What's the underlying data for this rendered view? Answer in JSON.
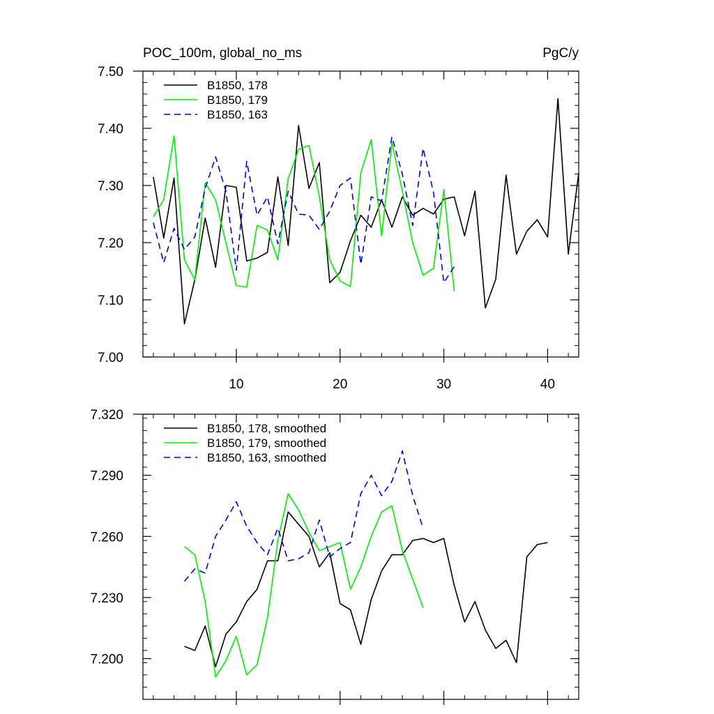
{
  "chart_data": [
    {
      "type": "line",
      "title": "POC_100m, global_no_ms",
      "units": "PgC/y",
      "xlabel": "",
      "ylabel": "",
      "xlim": [
        1,
        43
      ],
      "ylim": [
        7.0,
        7.5
      ],
      "xticks": [
        10,
        20,
        30,
        40
      ],
      "yticks": [
        7.0,
        7.1,
        7.2,
        7.3,
        7.4,
        7.5
      ],
      "ytick_labels": [
        "7.00",
        "7.10",
        "7.20",
        "7.30",
        "7.40",
        "7.50"
      ],
      "xtick_labels": [
        "10",
        "20",
        "30",
        "40"
      ],
      "legend_position": "top-left",
      "grid": false,
      "series": [
        {
          "name": "B1850, 178",
          "color": "#000000",
          "dash": "solid",
          "x": [
            2,
            3,
            4,
            5,
            6,
            7,
            8,
            9,
            10,
            11,
            12,
            13,
            14,
            15,
            16,
            17,
            18,
            19,
            20,
            21,
            22,
            23,
            24,
            25,
            26,
            27,
            28,
            29,
            30,
            31,
            32,
            33,
            34,
            35,
            36,
            37,
            38,
            39,
            40,
            41,
            42,
            43
          ],
          "y": [
            7.315,
            7.208,
            7.313,
            7.058,
            7.135,
            7.243,
            7.157,
            7.3,
            7.297,
            7.168,
            7.173,
            7.183,
            7.315,
            7.195,
            7.405,
            7.295,
            7.34,
            7.13,
            7.148,
            7.203,
            7.248,
            7.227,
            7.275,
            7.227,
            7.28,
            7.248,
            7.26,
            7.25,
            7.276,
            7.28,
            7.212,
            7.29,
            7.086,
            7.136,
            7.318,
            7.18,
            7.22,
            7.24,
            7.21,
            7.452,
            7.18,
            7.322
          ]
        },
        {
          "name": "B1850, 179",
          "color": "#00ee00",
          "dash": "solid",
          "x": [
            2,
            3,
            4,
            5,
            6,
            7,
            8,
            9,
            10,
            11,
            12,
            13,
            14,
            15,
            16,
            17,
            18,
            19,
            20,
            21,
            22,
            23,
            24,
            25,
            26,
            27,
            28,
            29,
            30,
            31
          ],
          "y": [
            7.245,
            7.275,
            7.387,
            7.17,
            7.135,
            7.305,
            7.275,
            7.2,
            7.125,
            7.122,
            7.23,
            7.222,
            7.17,
            7.312,
            7.363,
            7.37,
            7.28,
            7.17,
            7.133,
            7.123,
            7.322,
            7.38,
            7.212,
            7.375,
            7.29,
            7.2,
            7.143,
            7.155,
            7.293,
            7.115
          ]
        },
        {
          "name": "B1850, 163",
          "color": "#0000dd",
          "dash": "dashed",
          "x": [
            2,
            3,
            4,
            5,
            6,
            7,
            8,
            9,
            10,
            11,
            12,
            13,
            14,
            15,
            16,
            17,
            18,
            19,
            20,
            21,
            22,
            23,
            24,
            25,
            26,
            27,
            28,
            29,
            30,
            31
          ],
          "y": [
            7.235,
            7.165,
            7.225,
            7.188,
            7.21,
            7.295,
            7.35,
            7.29,
            7.152,
            7.342,
            7.248,
            7.28,
            7.198,
            7.29,
            7.25,
            7.248,
            7.223,
            7.255,
            7.3,
            7.313,
            7.162,
            7.28,
            7.273,
            7.385,
            7.32,
            7.23,
            7.365,
            7.288,
            7.13,
            7.158
          ]
        }
      ]
    },
    {
      "type": "line",
      "title": "",
      "xlabel": "",
      "ylabel": "",
      "xlim": [
        1,
        43
      ],
      "ylim": [
        7.18,
        7.32
      ],
      "xticks": [
        10,
        20,
        30,
        40
      ],
      "yticks": [
        7.2,
        7.23,
        7.26,
        7.29,
        7.32
      ],
      "ytick_labels": [
        "7.200",
        "7.230",
        "7.260",
        "7.290",
        "7.320"
      ],
      "legend_position": "top-left",
      "grid": false,
      "series": [
        {
          "name": "B1850, 178, smoothed",
          "color": "#000000",
          "dash": "solid",
          "x": [
            5,
            6,
            7,
            8,
            9,
            10,
            11,
            12,
            13,
            14,
            15,
            16,
            17,
            18,
            19,
            20,
            21,
            22,
            23,
            24,
            25,
            26,
            27,
            28,
            29,
            30,
            31,
            32,
            33,
            34,
            35,
            36,
            37,
            38,
            39,
            40
          ],
          "y": [
            7.206,
            7.204,
            7.216,
            7.196,
            7.212,
            7.218,
            7.228,
            7.234,
            7.248,
            7.248,
            7.272,
            7.266,
            7.26,
            7.245,
            7.252,
            7.227,
            7.224,
            7.207,
            7.229,
            7.243,
            7.251,
            7.251,
            7.258,
            7.259,
            7.257,
            7.259,
            7.236,
            7.218,
            7.228,
            7.214,
            7.205,
            7.209,
            7.198,
            7.25,
            7.256,
            7.257
          ]
        },
        {
          "name": "B1850, 179, smoothed",
          "color": "#00ee00",
          "dash": "solid",
          "x": [
            5,
            6,
            7,
            8,
            9,
            10,
            11,
            12,
            13,
            14,
            15,
            16,
            17,
            18,
            19,
            20,
            21,
            22,
            23,
            24,
            25,
            26,
            27,
            28
          ],
          "y": [
            7.255,
            7.251,
            7.228,
            7.191,
            7.199,
            7.211,
            7.192,
            7.197,
            7.22,
            7.258,
            7.281,
            7.273,
            7.262,
            7.253,
            7.255,
            7.257,
            7.234,
            7.245,
            7.26,
            7.272,
            7.275,
            7.253,
            7.239,
            7.225
          ]
        },
        {
          "name": "B1850, 163, smoothed",
          "color": "#0000dd",
          "dash": "dashed",
          "x": [
            5,
            6,
            7,
            8,
            9,
            10,
            11,
            12,
            13,
            14,
            15,
            16,
            17,
            18,
            19,
            20,
            21,
            22,
            23,
            24,
            25,
            26,
            27,
            28
          ],
          "y": [
            7.238,
            7.244,
            7.242,
            7.26,
            7.268,
            7.277,
            7.265,
            7.257,
            7.251,
            7.264,
            7.248,
            7.249,
            7.252,
            7.268,
            7.25,
            7.254,
            7.257,
            7.281,
            7.29,
            7.28,
            7.287,
            7.302,
            7.28,
            7.264
          ]
        }
      ]
    }
  ]
}
